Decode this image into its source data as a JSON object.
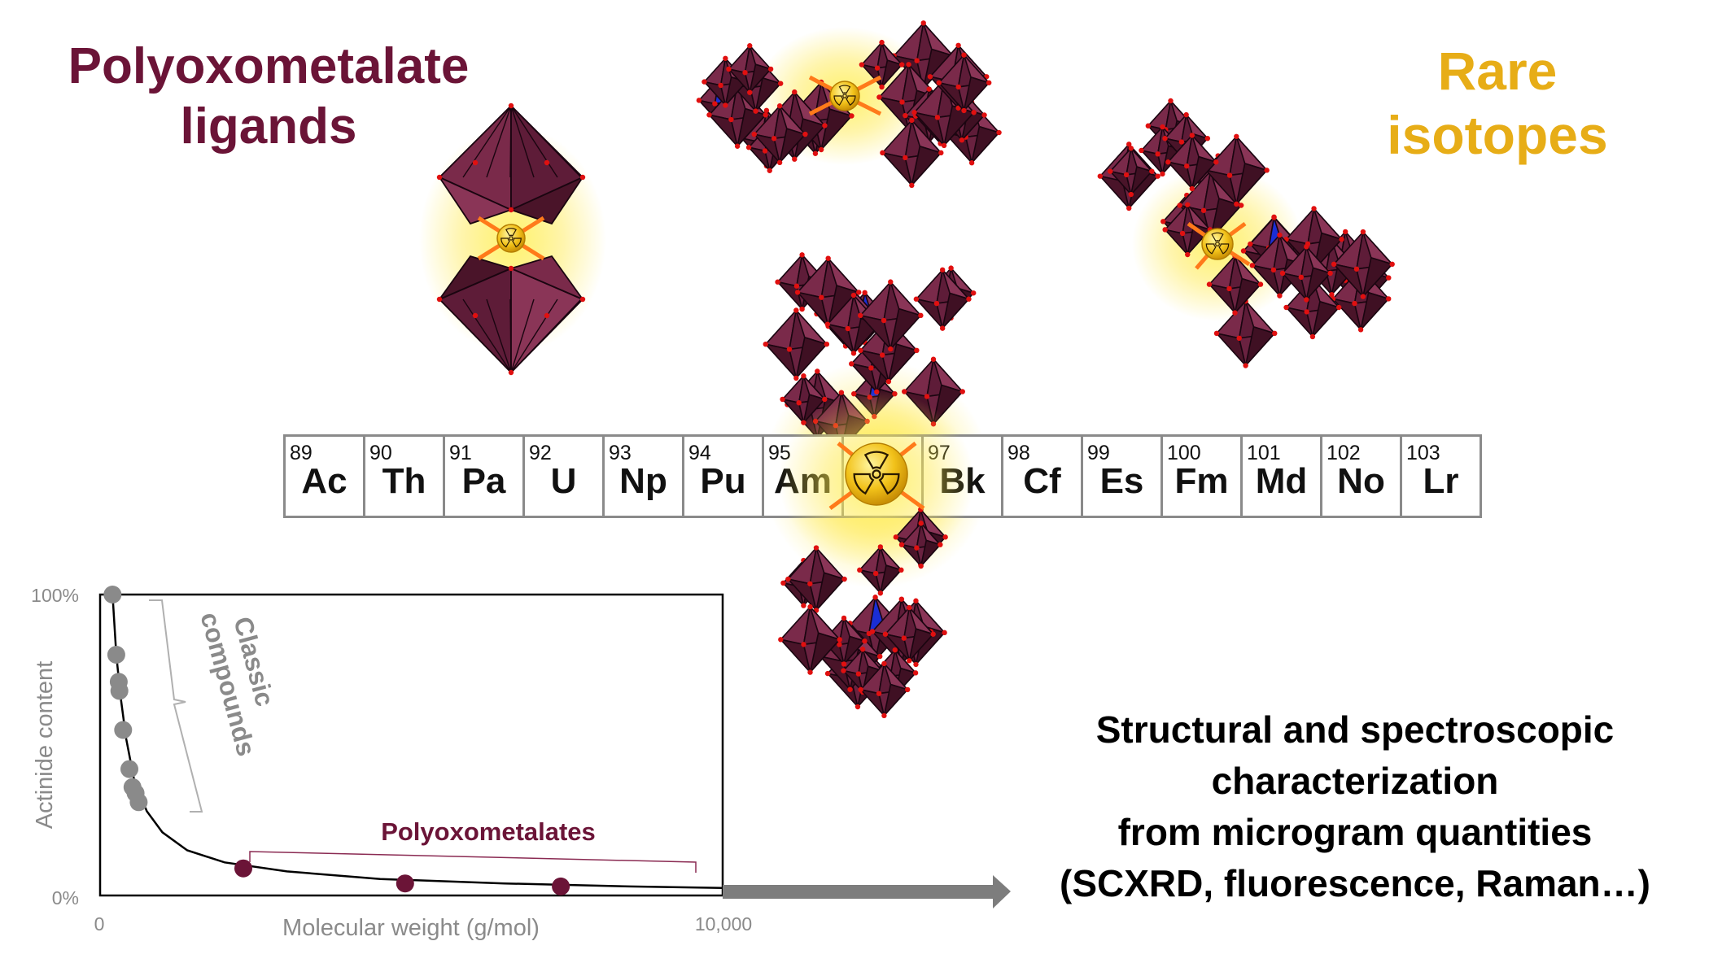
{
  "titles": {
    "left": [
      "Polyoxometalate",
      "ligands"
    ],
    "right": [
      "Rare",
      "isotopes"
    ]
  },
  "periodic_row": [
    {
      "number": "89",
      "symbol": "Ac"
    },
    {
      "number": "90",
      "symbol": "Th"
    },
    {
      "number": "91",
      "symbol": "Pa"
    },
    {
      "number": "92",
      "symbol": "U"
    },
    {
      "number": "93",
      "symbol": "Np"
    },
    {
      "number": "94",
      "symbol": "Pu"
    },
    {
      "number": "95",
      "symbol": "Am"
    },
    {
      "number": "",
      "symbol": ""
    },
    {
      "number": "97",
      "symbol": "Bk"
    },
    {
      "number": "98",
      "symbol": "Cf"
    },
    {
      "number": "99",
      "symbol": "Es"
    },
    {
      "number": "100",
      "symbol": "Fm"
    },
    {
      "number": "101",
      "symbol": "Md"
    },
    {
      "number": "102",
      "symbol": "No"
    },
    {
      "number": "103",
      "symbol": "Lr"
    }
  ],
  "characterization": [
    "Structural and spectroscopic",
    "characterization",
    "from microgram quantities",
    "(SCXRD, fluorescence, Raman…)"
  ],
  "colors": {
    "maroon": "#6b1437",
    "gold": "#e7ad17",
    "grey": "#8a8a8a",
    "cluster_dark": "#3d1025",
    "cluster_face": "#6e2443",
    "heteroatom_blue": "#1a2ed6",
    "oxygen_red": "#e01010",
    "bond_orange": "#ff7a1a"
  },
  "chart_data": {
    "type": "scatter",
    "xlabel": "Molecular weight (g/mol)",
    "ylabel": "Actinide content",
    "x_ticks": [
      "0",
      "10,000"
    ],
    "y_ticks": [
      "100%",
      "0%"
    ],
    "xlim": [
      0,
      10000
    ],
    "ylim": [
      0,
      100
    ],
    "grid": false,
    "annotations": [
      {
        "text": [
          "Classic",
          "compounds"
        ],
        "range_x": [
          500,
          1500
        ]
      },
      {
        "text": "Polyoxometalates",
        "range_x": [
          2300,
          9600
        ]
      }
    ],
    "series": [
      {
        "values": [
          {
            "x": 200,
            "y": 100
          },
          {
            "x": 260,
            "y": 80
          },
          {
            "x": 300,
            "y": 71
          },
          {
            "x": 310,
            "y": 68
          },
          {
            "x": 370,
            "y": 55
          },
          {
            "x": 470,
            "y": 42
          },
          {
            "x": 520,
            "y": 36
          },
          {
            "x": 570,
            "y": 34
          },
          {
            "x": 620,
            "y": 31
          }
        ]
      },
      {
        "values": [
          {
            "x": 2300,
            "y": 9
          },
          {
            "x": 4900,
            "y": 4
          },
          {
            "x": 7400,
            "y": 3
          }
        ]
      }
    ],
    "trend_line": [
      [
        200,
        100
      ],
      [
        260,
        80
      ],
      [
        330,
        66
      ],
      [
        420,
        52
      ],
      [
        550,
        38
      ],
      [
        750,
        28
      ],
      [
        1000,
        21
      ],
      [
        1400,
        15
      ],
      [
        2000,
        11
      ],
      [
        3000,
        8
      ],
      [
        4500,
        5.5
      ],
      [
        6500,
        4
      ],
      [
        8500,
        3
      ],
      [
        10000,
        2.5
      ]
    ]
  }
}
